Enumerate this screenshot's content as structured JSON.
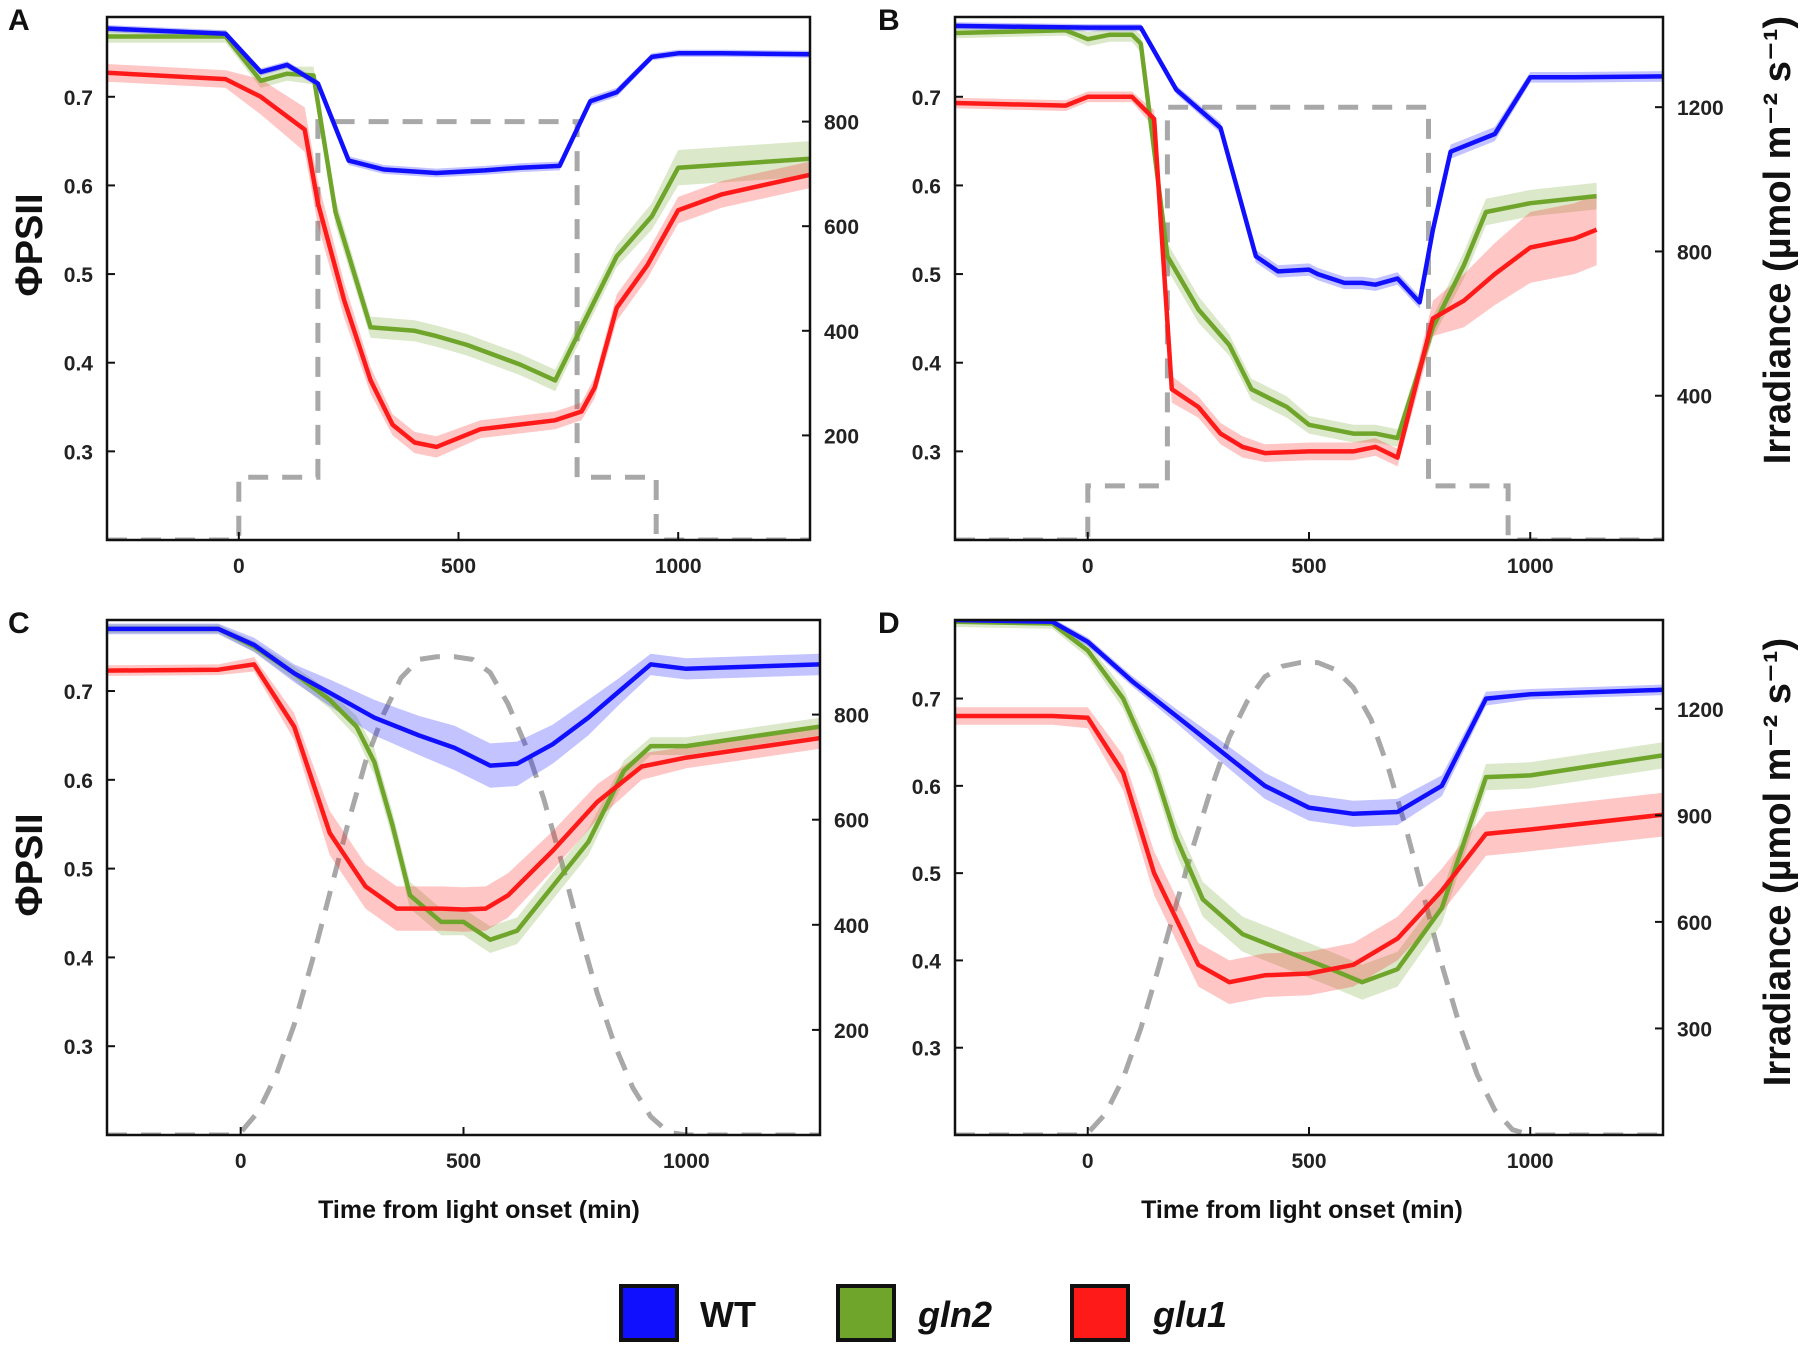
{
  "figure": {
    "ylabel_left": "ΦPSII",
    "ylabel_right": "Irradiance (µmol m⁻² s⁻¹)",
    "xlabel": "Time from light onset (min)"
  },
  "legend": [
    {
      "label": "WT",
      "color": "#1010ff",
      "italic": false
    },
    {
      "label": "gln2",
      "color": "#6fa52a",
      "italic": true
    },
    {
      "label": "glu1",
      "color": "#ff1a1a",
      "italic": true
    }
  ],
  "colors": {
    "WT": "#1010ff",
    "gln2": "#6fa52a",
    "glu1": "#ff1a1a",
    "irradiance": "#a8a8a8"
  },
  "chart_data": [
    {
      "panel": "A",
      "type": "line",
      "xlim": [
        -300,
        1300
      ],
      "ylim": [
        0.2,
        0.79
      ],
      "y2lim": [
        0,
        1000
      ],
      "xticks": [
        0,
        500,
        1000
      ],
      "yticks": [
        0.3,
        0.4,
        0.5,
        0.6,
        0.7
      ],
      "y2ticks": [
        200,
        400,
        600,
        800
      ],
      "series": [
        {
          "name": "WT",
          "x": [
            -300,
            -30,
            50,
            110,
            180,
            250,
            330,
            450,
            560,
            640,
            730,
            800,
            860,
            940,
            1000,
            1100,
            1300
          ],
          "y": [
            0.777,
            0.771,
            0.728,
            0.736,
            0.715,
            0.628,
            0.618,
            0.614,
            0.617,
            0.62,
            0.622,
            0.695,
            0.705,
            0.745,
            0.749,
            0.749,
            0.748
          ],
          "err": [
            0.004,
            0.004,
            0.004,
            0.004,
            0.004,
            0.005,
            0.005,
            0.005,
            0.005,
            0.005,
            0.005,
            0.005,
            0.005,
            0.004,
            0.004,
            0.004,
            0.004
          ]
        },
        {
          "name": "gln2",
          "x": [
            -300,
            -30,
            50,
            110,
            170,
            220,
            300,
            400,
            450,
            520,
            640,
            720,
            800,
            860,
            940,
            1000,
            1300
          ],
          "y": [
            0.768,
            0.768,
            0.718,
            0.726,
            0.724,
            0.57,
            0.44,
            0.436,
            0.43,
            0.42,
            0.398,
            0.38,
            0.46,
            0.52,
            0.565,
            0.62,
            0.63
          ],
          "err": [
            0.007,
            0.007,
            0.008,
            0.008,
            0.01,
            0.015,
            0.012,
            0.012,
            0.012,
            0.012,
            0.012,
            0.012,
            0.012,
            0.012,
            0.015,
            0.02,
            0.02
          ]
        },
        {
          "name": "glu1",
          "x": [
            -300,
            -30,
            50,
            150,
            180,
            240,
            300,
            350,
            400,
            450,
            550,
            720,
            780,
            810,
            860,
            930,
            1000,
            1100,
            1300
          ],
          "y": [
            0.727,
            0.72,
            0.7,
            0.663,
            0.58,
            0.47,
            0.38,
            0.33,
            0.31,
            0.305,
            0.325,
            0.335,
            0.345,
            0.372,
            0.462,
            0.51,
            0.572,
            0.59,
            0.612
          ],
          "err": [
            0.01,
            0.01,
            0.02,
            0.025,
            0.025,
            0.02,
            0.015,
            0.012,
            0.012,
            0.012,
            0.01,
            0.01,
            0.01,
            0.012,
            0.015,
            0.015,
            0.015,
            0.015,
            0.015
          ]
        }
      ],
      "irradiance": {
        "x": [
          -300,
          0,
          0,
          180,
          180,
          770,
          770,
          950,
          950,
          1300
        ],
        "y": [
          0,
          0,
          120,
          120,
          800,
          800,
          120,
          120,
          0,
          0
        ]
      }
    },
    {
      "panel": "B",
      "type": "line",
      "xlim": [
        -300,
        1300
      ],
      "ylim": [
        0.2,
        0.79
      ],
      "y2lim": [
        0,
        1450
      ],
      "xticks": [
        0,
        500,
        1000
      ],
      "yticks": [
        0.3,
        0.4,
        0.5,
        0.6,
        0.7
      ],
      "y2ticks": [
        400,
        800,
        1200
      ],
      "series": [
        {
          "name": "WT",
          "x": [
            -300,
            0,
            120,
            200,
            300,
            380,
            430,
            500,
            520,
            580,
            620,
            650,
            700,
            750,
            780,
            820,
            920,
            1000,
            1100,
            1300
          ],
          "y": [
            0.78,
            0.778,
            0.778,
            0.708,
            0.665,
            0.52,
            0.503,
            0.505,
            0.5,
            0.49,
            0.49,
            0.488,
            0.495,
            0.468,
            0.55,
            0.638,
            0.658,
            0.722,
            0.722,
            0.723
          ],
          "err": [
            0.004,
            0.004,
            0.004,
            0.005,
            0.006,
            0.007,
            0.007,
            0.007,
            0.007,
            0.007,
            0.007,
            0.007,
            0.007,
            0.007,
            0.008,
            0.008,
            0.008,
            0.006,
            0.006,
            0.006
          ]
        },
        {
          "name": "gln2",
          "x": [
            -300,
            -50,
            0,
            50,
            100,
            120,
            180,
            250,
            320,
            370,
            450,
            500,
            600,
            650,
            700,
            780,
            850,
            900,
            1000,
            1150
          ],
          "y": [
            0.772,
            0.775,
            0.765,
            0.77,
            0.77,
            0.76,
            0.52,
            0.46,
            0.42,
            0.37,
            0.35,
            0.33,
            0.32,
            0.32,
            0.315,
            0.44,
            0.51,
            0.57,
            0.58,
            0.588
          ],
          "err": [
            0.006,
            0.006,
            0.008,
            0.008,
            0.008,
            0.01,
            0.015,
            0.015,
            0.012,
            0.012,
            0.012,
            0.01,
            0.01,
            0.01,
            0.01,
            0.012,
            0.015,
            0.015,
            0.015,
            0.015
          ]
        },
        {
          "name": "glu1",
          "x": [
            -300,
            -50,
            0,
            100,
            150,
            190,
            250,
            300,
            350,
            400,
            500,
            600,
            650,
            700,
            780,
            850,
            920,
            1000,
            1100,
            1150
          ],
          "y": [
            0.693,
            0.69,
            0.7,
            0.7,
            0.675,
            0.37,
            0.35,
            0.32,
            0.305,
            0.298,
            0.3,
            0.3,
            0.305,
            0.293,
            0.45,
            0.47,
            0.5,
            0.53,
            0.54,
            0.55
          ],
          "err": [
            0.006,
            0.006,
            0.006,
            0.006,
            0.01,
            0.015,
            0.012,
            0.012,
            0.012,
            0.01,
            0.01,
            0.01,
            0.01,
            0.01,
            0.02,
            0.03,
            0.035,
            0.04,
            0.04,
            0.04
          ]
        }
      ],
      "irradiance": {
        "x": [
          -300,
          0,
          0,
          180,
          180,
          770,
          770,
          950,
          950,
          1300
        ],
        "y": [
          0,
          0,
          150,
          150,
          1200,
          1200,
          150,
          150,
          0,
          0
        ]
      }
    },
    {
      "panel": "C",
      "type": "line",
      "xlim": [
        -300,
        1300
      ],
      "ylim": [
        0.2,
        0.78
      ],
      "y2lim": [
        0,
        980
      ],
      "xticks": [
        0,
        500,
        1000
      ],
      "yticks": [
        0.3,
        0.4,
        0.5,
        0.6,
        0.7
      ],
      "y2ticks": [
        200,
        400,
        600,
        800
      ],
      "series": [
        {
          "name": "WT",
          "x": [
            -300,
            -50,
            30,
            120,
            200,
            300,
            400,
            480,
            560,
            620,
            700,
            780,
            850,
            920,
            1000,
            1300
          ],
          "y": [
            0.77,
            0.77,
            0.752,
            0.72,
            0.698,
            0.67,
            0.65,
            0.636,
            0.616,
            0.618,
            0.64,
            0.67,
            0.7,
            0.73,
            0.725,
            0.73
          ],
          "err": [
            0.006,
            0.006,
            0.008,
            0.01,
            0.015,
            0.02,
            0.022,
            0.025,
            0.025,
            0.025,
            0.022,
            0.02,
            0.015,
            0.012,
            0.012,
            0.012
          ]
        },
        {
          "name": "gln2",
          "x": [
            -300,
            -50,
            30,
            120,
            200,
            260,
            300,
            340,
            380,
            450,
            500,
            560,
            620,
            700,
            780,
            860,
            920,
            1000,
            1300
          ],
          "y": [
            0.77,
            0.77,
            0.75,
            0.72,
            0.69,
            0.66,
            0.62,
            0.55,
            0.47,
            0.44,
            0.44,
            0.42,
            0.43,
            0.48,
            0.53,
            0.61,
            0.638,
            0.638,
            0.66
          ],
          "err": [
            0.005,
            0.005,
            0.006,
            0.008,
            0.01,
            0.012,
            0.015,
            0.015,
            0.015,
            0.015,
            0.015,
            0.015,
            0.015,
            0.015,
            0.015,
            0.012,
            0.01,
            0.01,
            0.01
          ]
        },
        {
          "name": "glu1",
          "x": [
            -300,
            -50,
            30,
            120,
            200,
            280,
            350,
            400,
            450,
            500,
            550,
            600,
            700,
            800,
            900,
            1000,
            1300
          ],
          "y": [
            0.723,
            0.724,
            0.73,
            0.66,
            0.54,
            0.48,
            0.455,
            0.455,
            0.455,
            0.454,
            0.455,
            0.47,
            0.52,
            0.575,
            0.615,
            0.625,
            0.647
          ],
          "err": [
            0.006,
            0.006,
            0.008,
            0.015,
            0.025,
            0.025,
            0.025,
            0.025,
            0.025,
            0.025,
            0.025,
            0.025,
            0.022,
            0.02,
            0.015,
            0.012,
            0.012
          ]
        }
      ],
      "irradiance": {
        "x": [
          -300,
          -20,
          0,
          40,
          80,
          120,
          160,
          200,
          240,
          280,
          320,
          360,
          400,
          440,
          480,
          520,
          560,
          600,
          640,
          680,
          720,
          760,
          800,
          840,
          880,
          920,
          960,
          1000,
          1300
        ],
        "y": [
          0,
          0,
          5,
          45,
          115,
          210,
          330,
          460,
          590,
          710,
          800,
          870,
          905,
          910,
          910,
          905,
          880,
          820,
          740,
          640,
          520,
          390,
          270,
          170,
          90,
          35,
          5,
          0,
          0
        ]
      }
    },
    {
      "panel": "D",
      "type": "line",
      "xlim": [
        -300,
        1300
      ],
      "ylim": [
        0.2,
        0.79
      ],
      "y2lim": [
        0,
        1450
      ],
      "xticks": [
        0,
        500,
        1000
      ],
      "yticks": [
        0.3,
        0.4,
        0.5,
        0.6,
        0.7
      ],
      "y2ticks": [
        300,
        600,
        900,
        1200
      ],
      "series": [
        {
          "name": "WT",
          "x": [
            -300,
            -80,
            0,
            100,
            200,
            300,
            400,
            500,
            600,
            700,
            800,
            900,
            1000,
            1300
          ],
          "y": [
            0.79,
            0.788,
            0.765,
            0.72,
            0.68,
            0.64,
            0.6,
            0.575,
            0.568,
            0.57,
            0.6,
            0.7,
            0.705,
            0.71
          ],
          "err": [
            0.004,
            0.004,
            0.005,
            0.006,
            0.008,
            0.012,
            0.015,
            0.015,
            0.015,
            0.015,
            0.012,
            0.008,
            0.006,
            0.006
          ]
        },
        {
          "name": "gln2",
          "x": [
            -300,
            -80,
            0,
            80,
            150,
            200,
            260,
            350,
            450,
            550,
            620,
            700,
            800,
            900,
            1000,
            1300
          ],
          "y": [
            0.788,
            0.786,
            0.755,
            0.7,
            0.62,
            0.54,
            0.47,
            0.43,
            0.41,
            0.39,
            0.375,
            0.39,
            0.46,
            0.61,
            0.612,
            0.635
          ],
          "err": [
            0.006,
            0.006,
            0.008,
            0.012,
            0.015,
            0.018,
            0.02,
            0.02,
            0.02,
            0.02,
            0.02,
            0.02,
            0.018,
            0.015,
            0.015,
            0.015
          ]
        },
        {
          "name": "glu1",
          "x": [
            -300,
            -80,
            0,
            80,
            150,
            250,
            320,
            400,
            500,
            600,
            700,
            800,
            900,
            1000,
            1300
          ],
          "y": [
            0.68,
            0.68,
            0.678,
            0.615,
            0.5,
            0.395,
            0.375,
            0.383,
            0.385,
            0.395,
            0.425,
            0.48,
            0.545,
            0.55,
            0.567
          ],
          "err": [
            0.01,
            0.01,
            0.012,
            0.02,
            0.025,
            0.025,
            0.025,
            0.025,
            0.025,
            0.025,
            0.025,
            0.025,
            0.025,
            0.025,
            0.025
          ]
        }
      ],
      "irradiance": {
        "x": [
          -300,
          -20,
          0,
          40,
          80,
          120,
          160,
          200,
          240,
          280,
          320,
          360,
          400,
          440,
          480,
          520,
          560,
          600,
          640,
          680,
          720,
          760,
          800,
          840,
          880,
          920,
          960,
          1000,
          1300
        ],
        "y": [
          0,
          0,
          5,
          60,
          160,
          300,
          470,
          650,
          820,
          980,
          1120,
          1220,
          1290,
          1320,
          1330,
          1330,
          1310,
          1260,
          1170,
          1030,
          860,
          670,
          480,
          310,
          170,
          70,
          15,
          0,
          0
        ]
      }
    }
  ]
}
